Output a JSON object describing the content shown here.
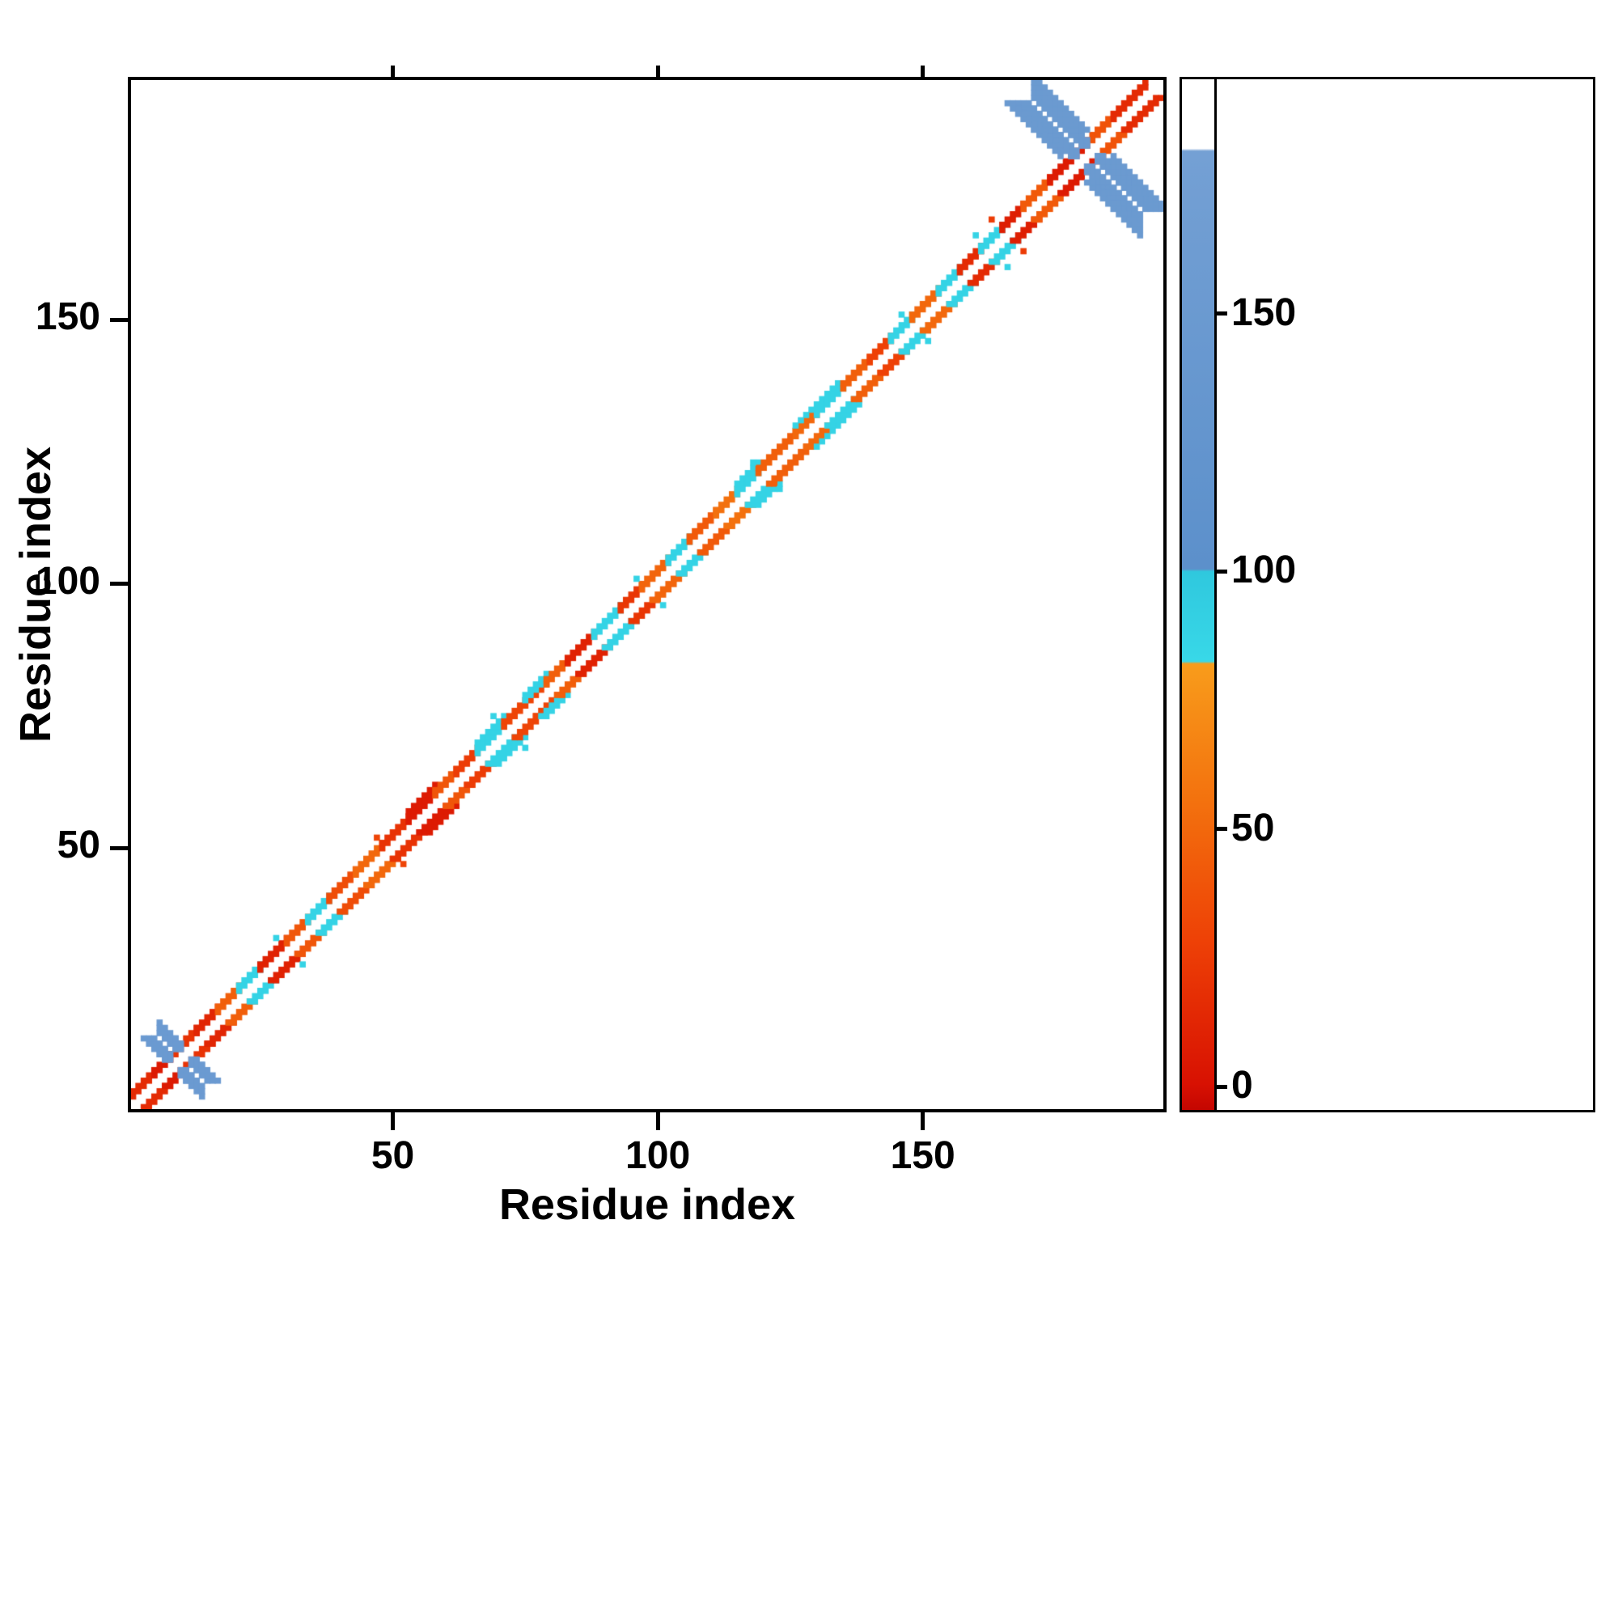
{
  "chart_data": {
    "type": "heatmap",
    "title": "",
    "xlabel": "Residue index",
    "ylabel": "Residue index",
    "xlim": [
      0,
      196
    ],
    "ylim": [
      0,
      196
    ],
    "xticks": [
      50,
      100,
      150
    ],
    "yticks": [
      50,
      100,
      150
    ],
    "grid": false,
    "background": "#ffffff",
    "colorbar": {
      "ticks": [
        0,
        50,
        100,
        150
      ],
      "vmin": -5,
      "vmax": 196,
      "stops": [
        {
          "v": -5,
          "c": "#c40601"
        },
        {
          "v": 0,
          "c": "#d81102"
        },
        {
          "v": 28,
          "c": "#ee4106"
        },
        {
          "v": 55,
          "c": "#f3710e"
        },
        {
          "v": 82,
          "c": "#f89c1b"
        },
        {
          "v": 82.5,
          "c": "#38d8e8"
        },
        {
          "v": 100,
          "c": "#2fc8de"
        },
        {
          "v": 100.5,
          "c": "#5c90cb"
        },
        {
          "v": 182,
          "c": "#74a0d4"
        },
        {
          "v": 182.5,
          "c": "#ffffff"
        },
        {
          "v": 196,
          "c": "#ffffff"
        }
      ]
    },
    "bands": [
      {
        "from": 1,
        "to": 5,
        "offsets": [
          2,
          3
        ],
        "value": 15
      },
      {
        "from": 5,
        "to": 8,
        "offsets": [
          2,
          3
        ],
        "value": 5
      },
      {
        "from": 8,
        "to": 13,
        "offsets": [
          2,
          3
        ],
        "value": 20
      },
      {
        "from": 13,
        "to": 17,
        "offsets": [
          2,
          3
        ],
        "value": 12
      },
      {
        "from": 17,
        "to": 21,
        "offsets": [
          2,
          3
        ],
        "value": 45
      },
      {
        "from": 21,
        "to": 25,
        "offsets": [
          2,
          3
        ],
        "value": 88
      },
      {
        "from": 25,
        "to": 30,
        "offsets": [
          2,
          3
        ],
        "value": 10
      },
      {
        "from": 30,
        "to": 34,
        "offsets": [
          2,
          3
        ],
        "value": 40
      },
      {
        "from": 34,
        "to": 38,
        "offsets": [
          2,
          3
        ],
        "value": 88
      },
      {
        "from": 38,
        "to": 43,
        "offsets": [
          2,
          3
        ],
        "value": 35
      },
      {
        "from": 43,
        "to": 48,
        "offsets": [
          2,
          3
        ],
        "value": 50
      },
      {
        "from": 48,
        "to": 53,
        "offsets": [
          2,
          3
        ],
        "value": 20
      },
      {
        "from": 53,
        "to": 58,
        "offsets": [
          2,
          3,
          4
        ],
        "value": 6
      },
      {
        "from": 58,
        "to": 62,
        "offsets": [
          2,
          3
        ],
        "value": 40
      },
      {
        "from": 62,
        "to": 66,
        "offsets": [
          2,
          3
        ],
        "value": 25
      },
      {
        "from": 66,
        "to": 71,
        "offsets": [
          2,
          3,
          4
        ],
        "value": 88
      },
      {
        "from": 71,
        "to": 75,
        "offsets": [
          2,
          3
        ],
        "value": 30
      },
      {
        "from": 75,
        "to": 79,
        "offsets": [
          2
        ],
        "value": 30
      },
      {
        "from": 75,
        "to": 79,
        "offsets": [
          3,
          4
        ],
        "value": 88
      },
      {
        "from": 79,
        "to": 83,
        "offsets": [
          2,
          3
        ],
        "value": 45
      },
      {
        "from": 83,
        "to": 88,
        "offsets": [
          2,
          3
        ],
        "value": 10
      },
      {
        "from": 88,
        "to": 93,
        "offsets": [
          2,
          3
        ],
        "value": 88
      },
      {
        "from": 93,
        "to": 97,
        "offsets": [
          2,
          3
        ],
        "value": 22
      },
      {
        "from": 97,
        "to": 102,
        "offsets": [
          2,
          3
        ],
        "value": 48
      },
      {
        "from": 102,
        "to": 106,
        "offsets": [
          2,
          3
        ],
        "value": 88
      },
      {
        "from": 106,
        "to": 111,
        "offsets": [
          2,
          3
        ],
        "value": 42
      },
      {
        "from": 111,
        "to": 115,
        "offsets": [
          2,
          3
        ],
        "value": 55
      },
      {
        "from": 115,
        "to": 119,
        "offsets": [
          2,
          3,
          4
        ],
        "value": 88
      },
      {
        "from": 119,
        "to": 126,
        "offsets": [
          2,
          3
        ],
        "value": 45
      },
      {
        "from": 126,
        "to": 130,
        "offsets": [
          2,
          3
        ],
        "value": 50
      },
      {
        "from": 126,
        "to": 134,
        "offsets": [
          4
        ],
        "value": 88
      },
      {
        "from": 130,
        "to": 135,
        "offsets": [
          2,
          3
        ],
        "value": 88
      },
      {
        "from": 135,
        "to": 140,
        "offsets": [
          2,
          3
        ],
        "value": 45
      },
      {
        "from": 140,
        "to": 144,
        "offsets": [
          2,
          3
        ],
        "value": 28
      },
      {
        "from": 144,
        "to": 148,
        "offsets": [
          2,
          3
        ],
        "value": 88
      },
      {
        "from": 148,
        "to": 153,
        "offsets": [
          2,
          3
        ],
        "value": 50
      },
      {
        "from": 153,
        "to": 157,
        "offsets": [
          2,
          3
        ],
        "value": 88
      },
      {
        "from": 157,
        "to": 161,
        "offsets": [
          2,
          3
        ],
        "value": 15
      },
      {
        "from": 161,
        "to": 165,
        "offsets": [
          2,
          3
        ],
        "value": 88
      },
      {
        "from": 165,
        "to": 169,
        "offsets": [
          2,
          3
        ],
        "value": 8
      },
      {
        "from": 169,
        "to": 174,
        "offsets": [
          2,
          3
        ],
        "value": 42
      },
      {
        "from": 174,
        "to": 181,
        "offsets": [
          2,
          3
        ],
        "value": 6
      },
      {
        "from": 181,
        "to": 186,
        "offsets": [
          2,
          3
        ],
        "value": 38
      },
      {
        "from": 186,
        "to": 192,
        "offsets": [
          2,
          3
        ],
        "value": 15
      }
    ],
    "anti_bands": [
      {
        "center": 10,
        "from": 6,
        "to": 14,
        "offsets": [
          1,
          2,
          3
        ],
        "value": 152
      },
      {
        "center": 181,
        "from": 171,
        "to": 191,
        "offsets": [
          1,
          2,
          3
        ],
        "value": 150
      },
      {
        "center": 181,
        "from": 171,
        "to": 176,
        "offsets": [
          4,
          5
        ],
        "value": 150
      },
      {
        "center": 181,
        "from": 186,
        "to": 191,
        "offsets": [
          4,
          5
        ],
        "value": 150
      }
    ],
    "extra_cells": [
      {
        "i": 28,
        "j": 33,
        "value": 88
      },
      {
        "i": 47,
        "j": 52,
        "value": 30
      },
      {
        "i": 69,
        "j": 75,
        "value": 88
      },
      {
        "i": 96,
        "j": 101,
        "value": 88
      },
      {
        "i": 118,
        "j": 123,
        "value": 88
      },
      {
        "i": 146,
        "j": 151,
        "value": 88
      },
      {
        "i": 160,
        "j": 166,
        "value": 88
      },
      {
        "i": 163,
        "j": 169,
        "value": 25
      }
    ]
  }
}
